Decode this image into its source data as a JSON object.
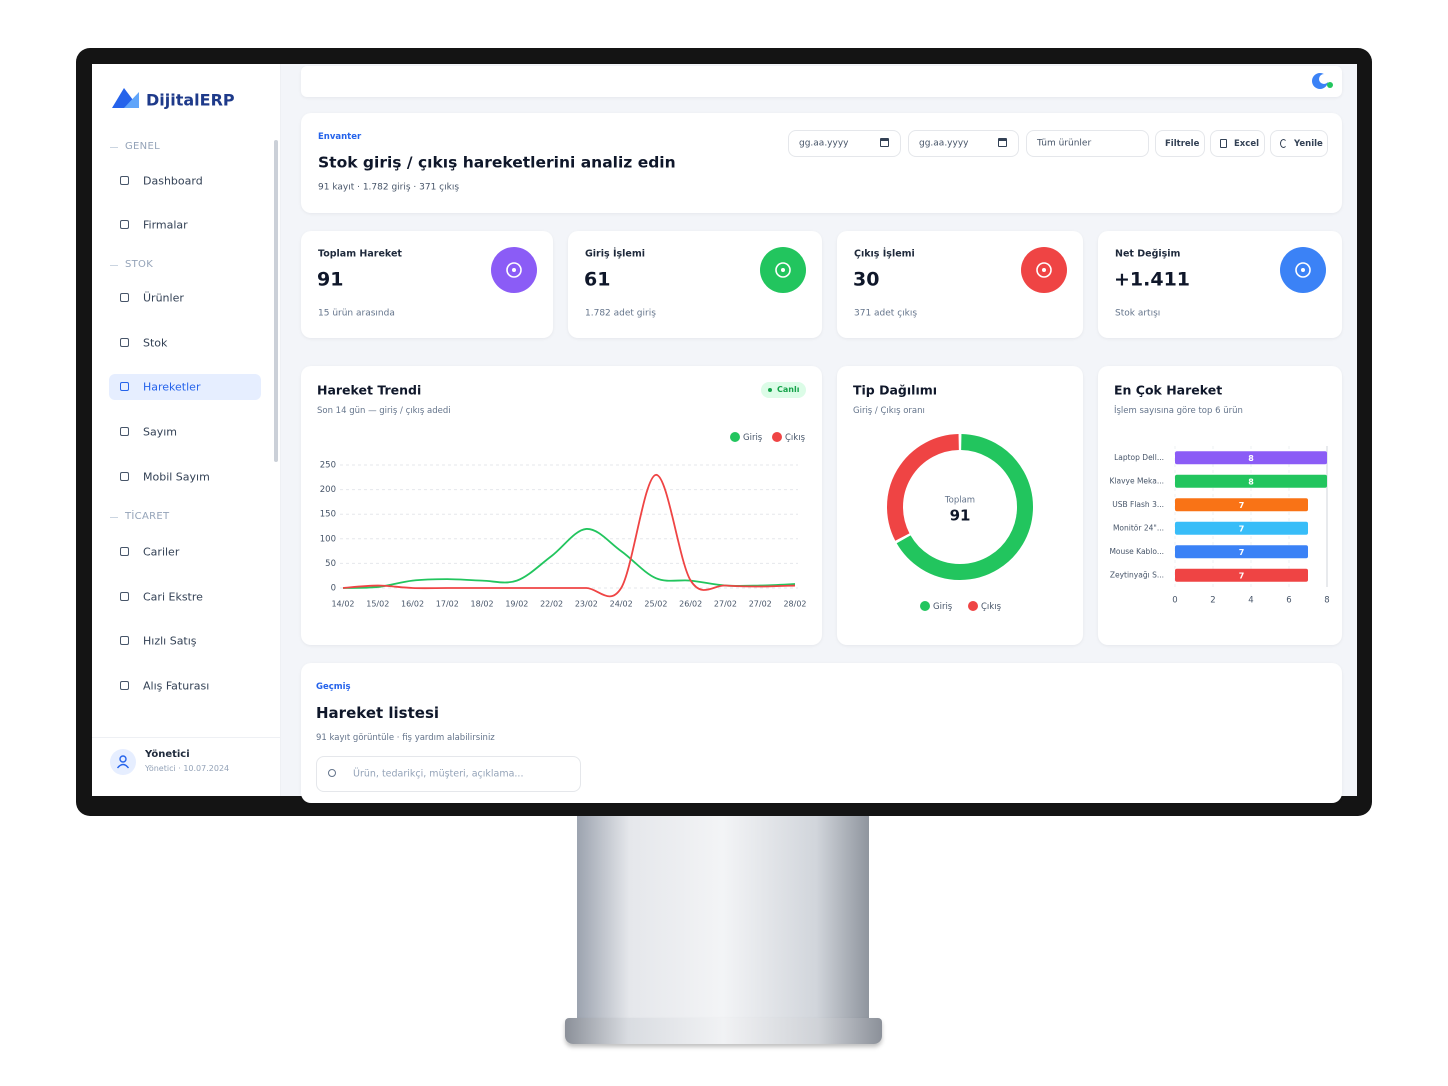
{
  "sidebar": {
    "brand": "DijitalERP",
    "sections": [
      {
        "title": "GENEL",
        "items": [
          "Dashboard",
          "Firmalar"
        ]
      },
      {
        "title": "STOK",
        "items": [
          "Ürünler",
          "Stok",
          "Hareketler",
          "Sayım",
          "Mobil Sayım"
        ]
      },
      {
        "title": "TİCARET",
        "items": [
          "Cariler",
          "Cari Ekstre",
          "Hızlı Satış",
          "Alış Faturası"
        ]
      }
    ],
    "user": {
      "name": "Yönetici",
      "detail": "Yönetici · 10.07.2024"
    }
  },
  "header": {
    "eyebrow": "Envanter",
    "title": "Stok giriş / çıkış hareketlerini analiz edin",
    "subtitle": "91 kayıt · 1.782 giriş · 371 çıkış",
    "date_from": "gg.aa.yyyy",
    "date_to": "gg.aa.yyyy",
    "product_select": "Tüm ürünler",
    "buttons": [
      "Filtrele",
      "Excel",
      "Yenile"
    ]
  },
  "kpis": [
    {
      "label": "Toplam Hareket",
      "value": 91,
      "note": "15 ürün arasında",
      "color": "#8b5cf6"
    },
    {
      "label": "Giriş İşlemi",
      "value": 61,
      "note": "1.782 adet giriş",
      "color": "#22c55e"
    },
    {
      "label": "Çıkış İşlemi",
      "value": 30,
      "note": "371 adet çıkış",
      "color": "#ef4444"
    },
    {
      "label": "Net Değişim",
      "value": "+1.411",
      "note": "Stok artışı",
      "color": "#3b82f6"
    }
  ],
  "chart_data": [
    {
      "type": "line",
      "title": "Hareket Trendi",
      "subtitle": "Son 14 gün — giriş / çıkış adedi",
      "badge": "Canlı",
      "categories": [
        "14/02",
        "15/02",
        "16/02",
        "17/02",
        "18/02",
        "19/02",
        "22/02",
        "23/02",
        "24/02",
        "25/02",
        "26/02",
        "27/02",
        "27/02",
        "28/02"
      ],
      "series": [
        {
          "name": "Giriş",
          "color": "#22c55e",
          "values": [
            0,
            2,
            15,
            18,
            15,
            15,
            65,
            120,
            75,
            20,
            15,
            5,
            5,
            8
          ]
        },
        {
          "name": "Çıkış",
          "color": "#ef4444",
          "values": [
            0,
            5,
            0,
            0,
            0,
            0,
            0,
            0,
            0,
            230,
            15,
            5,
            3,
            5
          ]
        }
      ],
      "ylim": [
        0,
        250
      ],
      "yticks": [
        0,
        50,
        100,
        150,
        200,
        250
      ],
      "grid": true,
      "legend": "top-right"
    },
    {
      "type": "donut",
      "title": "Tip Dağılımı",
      "subtitle": "Giriş / Çıkış oranı",
      "center_label": "Toplam",
      "center_value": 91,
      "categories": [
        "Giriş",
        "Çıkış"
      ],
      "values": [
        61,
        30
      ],
      "colors": [
        "#22c55e",
        "#ef4444"
      ]
    },
    {
      "type": "hbar",
      "title": "En Çok Hareket",
      "subtitle": "İşlem sayısına göre top 6 ürün",
      "categories": [
        "Laptop Dell...",
        "Klavye Meka...",
        "USB Flash 3...",
        "Monitör 24\"...",
        "Mouse Kablo...",
        "Zeytinyağı S..."
      ],
      "values": [
        8,
        8,
        7,
        7,
        7,
        7
      ],
      "colors": [
        "#8b5cf6",
        "#22c55e",
        "#f97316",
        "#38bdf8",
        "#3b82f6",
        "#ef4444"
      ],
      "xlim": [
        0,
        8
      ],
      "xticks": [
        0,
        2,
        4,
        6,
        8
      ],
      "grid": true
    }
  ],
  "history": {
    "eyebrow": "Geçmiş",
    "title": "Hareket listesi",
    "subtitle": "91 kayıt görüntüle · fiş yardım alabilirsiniz",
    "search_placeholder": "Ürün, tedarikçi, müşteri, açıklama..."
  }
}
